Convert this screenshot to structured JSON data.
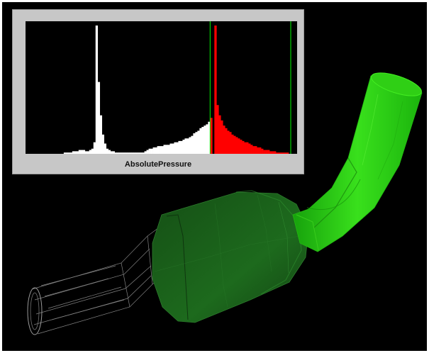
{
  "histogram": {
    "label": "AbsolutePressure"
  },
  "chart_data": {
    "type": "bar",
    "xlabel": "AbsolutePressure",
    "ylabel": "",
    "bins": 128,
    "ylim": [
      0,
      100
    ],
    "values": [
      0,
      0,
      0,
      0,
      0,
      0,
      0,
      0,
      0,
      0,
      0,
      0,
      0,
      0,
      0,
      0,
      0,
      0,
      1,
      1,
      1,
      1,
      2,
      2,
      2,
      3,
      3,
      3,
      2,
      2,
      3,
      4,
      9,
      100,
      56,
      30,
      15,
      8,
      4,
      3,
      2,
      2,
      1,
      1,
      1,
      1,
      1,
      1,
      1,
      1,
      1,
      1,
      1,
      1,
      1,
      1,
      2,
      3,
      4,
      4,
      5,
      5,
      6,
      6,
      6,
      7,
      7,
      7,
      8,
      8,
      9,
      9,
      10,
      10,
      11,
      12,
      12,
      13,
      14,
      16,
      17,
      18,
      20,
      21,
      22,
      23,
      25,
      28,
      0,
      100,
      38,
      30,
      26,
      22,
      20,
      18,
      17,
      15,
      14,
      13,
      12,
      11,
      10,
      9,
      9,
      8,
      7,
      6,
      6,
      5,
      5,
      4,
      3,
      3,
      3,
      2,
      2,
      2,
      1,
      1,
      1,
      1,
      1,
      1,
      0,
      0,
      0,
      0
    ],
    "selection_start_bin": 87,
    "selection_end_bin": 124,
    "colors": {
      "unselected": "#ffffff",
      "selected": "#ff0000",
      "marker": "#00ff00",
      "panel": "#c7c7c7",
      "plot_background": "#000000"
    }
  },
  "scene": {
    "background": "#000000",
    "outlet_color": "#33dd11",
    "body_color": "#1f6f1f",
    "inlet_color": "#bbbbbb"
  }
}
